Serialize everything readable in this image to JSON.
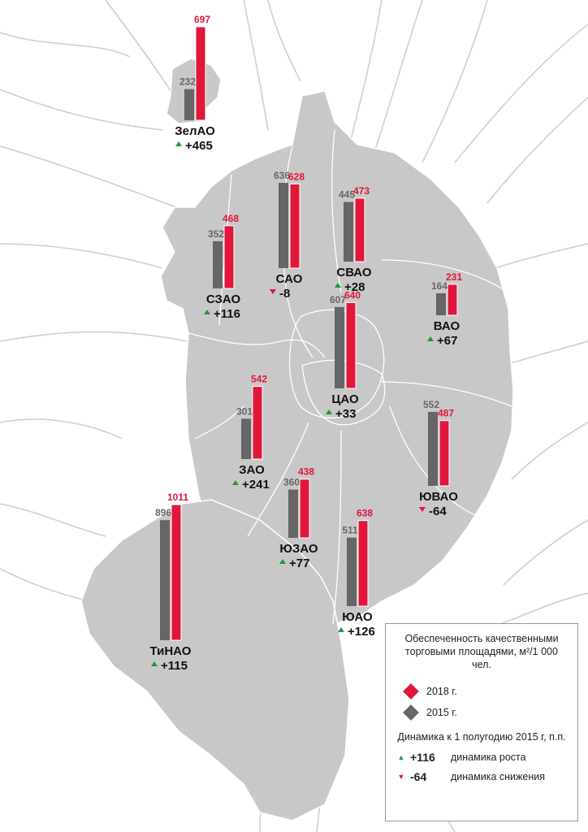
{
  "colors": {
    "y2018": "#e0163b",
    "y2015": "#666666",
    "up": "#1b9a3c",
    "down": "#e0163b",
    "land": "#c8c8c8"
  },
  "districts": [
    {
      "id": "zelao",
      "name": "ЗелАО",
      "v2015": 232,
      "v2018": 697,
      "dir": "up",
      "dyn": "+465"
    },
    {
      "id": "sao",
      "name": "САО",
      "v2015": 636,
      "v2018": 628,
      "dir": "down",
      "dyn": "-8"
    },
    {
      "id": "svao",
      "name": "СВАО",
      "v2015": 445,
      "v2018": 473,
      "dir": "up",
      "dyn": "+28"
    },
    {
      "id": "szao",
      "name": "СЗАО",
      "v2015": 352,
      "v2018": 468,
      "dir": "up",
      "dyn": "+116"
    },
    {
      "id": "vao",
      "name": "ВАО",
      "v2015": 164,
      "v2018": 231,
      "dir": "up",
      "dyn": "+67"
    },
    {
      "id": "cao",
      "name": "ЦАО",
      "v2015": 607,
      "v2018": 640,
      "dir": "up",
      "dyn": "+33"
    },
    {
      "id": "zao",
      "name": "ЗАО",
      "v2015": 301,
      "v2018": 542,
      "dir": "up",
      "dyn": "+241"
    },
    {
      "id": "yuvao",
      "name": "ЮВАО",
      "v2015": 552,
      "v2018": 487,
      "dir": "down",
      "dyn": "-64"
    },
    {
      "id": "yuzao",
      "name": "ЮЗАО",
      "v2015": 360,
      "v2018": 438,
      "dir": "up",
      "dyn": "+77"
    },
    {
      "id": "uao",
      "name": "ЮАО",
      "v2015": 511,
      "v2018": 638,
      "dir": "up",
      "dyn": "+126"
    },
    {
      "id": "tinao",
      "name": "ТиНАО",
      "v2015": 896,
      "v2018": 1011,
      "dir": "up",
      "dyn": "+115"
    }
  ],
  "legend": {
    "title": "Обеспеченность качественными торговыми площадями, м²/1 000 чел.",
    "y2018": "2018 г.",
    "y2015": "2015 г.",
    "subtitle": "Динамика к 1 полугодию 2015 г, п.п.",
    "up_value": "+116",
    "up_label": "динамика роста",
    "down_value": "-64",
    "down_label": "динамика снижения"
  }
}
